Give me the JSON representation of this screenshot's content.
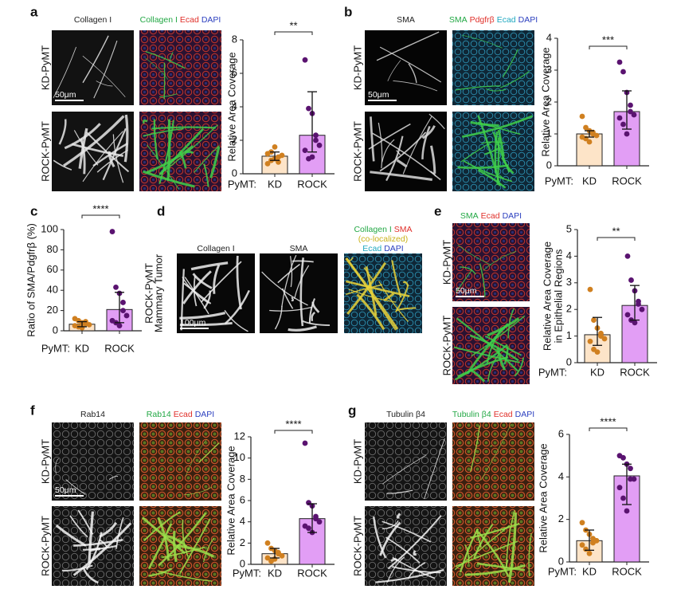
{
  "panels": [
    {
      "letter": "a",
      "titles": [
        [
          [
            {
              "text": "Collagen I",
              "color": "#222222"
            }
          ]
        ],
        [
          [
            {
              "text": "Collagen I",
              "color": "#23a845"
            },
            {
              "text": "Ecad",
              "color": "#e0302a"
            },
            {
              "text": "DAPI",
              "color": "#2b3fbf"
            }
          ]
        ]
      ],
      "rows": [
        [
          "KD-PyMT"
        ],
        [
          "ROCK-PyMT"
        ]
      ],
      "scale_bar": "50μm"
    },
    {
      "letter": "b",
      "titles": [
        [
          [
            {
              "text": "SMA",
              "color": "#222222"
            }
          ]
        ],
        [
          [
            {
              "text": "SMA",
              "color": "#23a845"
            },
            {
              "text": "Pdgfrβ",
              "color": "#e0302a"
            },
            {
              "text": "Ecad",
              "color": "#1fa8c0"
            },
            {
              "text": "DAPI",
              "color": "#2b3fbf"
            }
          ]
        ]
      ],
      "rows": [
        [
          "KD-PyMT"
        ],
        [
          "ROCK-PyMT"
        ]
      ],
      "scale_bar": "50μm"
    },
    {
      "letter": "c",
      "titles": [],
      "rows": [],
      "scale_bar": null
    },
    {
      "letter": "d",
      "titles": [
        [
          [
            {
              "text": "Collagen I",
              "color": "#222222"
            }
          ]
        ],
        [
          [
            {
              "text": "SMA",
              "color": "#222222"
            }
          ]
        ],
        [
          [
            {
              "text": "Collagen I",
              "color": "#23a845"
            },
            {
              "text": "SMA",
              "color": "#e0302a"
            }
          ],
          [
            {
              "text": "(co-localized)",
              "color": "#c9b21a"
            }
          ],
          [
            {
              "text": "Ecad",
              "color": "#1fa8c0"
            },
            {
              "text": "DAPI",
              "color": "#2b3fbf"
            }
          ]
        ]
      ],
      "rows": [
        [
          "ROCK-PyMT",
          "Mammary Tumor"
        ]
      ],
      "scale_bar": "100μm"
    },
    {
      "letter": "e",
      "titles": [
        [
          [
            {
              "text": "SMA",
              "color": "#23a845"
            },
            {
              "text": "Ecad",
              "color": "#e0302a"
            },
            {
              "text": "DAPI",
              "color": "#2b3fbf"
            }
          ]
        ]
      ],
      "rows": [
        [
          "KD-PyMT"
        ],
        [
          "ROCK-PyMT"
        ]
      ],
      "scale_bar": "50μm"
    },
    {
      "letter": "f",
      "titles": [
        [
          [
            {
              "text": "Rab14",
              "color": "#222222"
            }
          ]
        ],
        [
          [
            {
              "text": "Rab14",
              "color": "#23a845"
            },
            {
              "text": "Ecad",
              "color": "#e0302a"
            },
            {
              "text": "DAPI",
              "color": "#2b3fbf"
            }
          ]
        ]
      ],
      "rows": [
        [
          "KD-PyMT"
        ],
        [
          "ROCK-PyMT"
        ]
      ],
      "scale_bar": "50μm"
    },
    {
      "letter": "g",
      "titles": [
        [
          [
            {
              "text": "Tubulin β4",
              "color": "#222222"
            }
          ]
        ],
        [
          [
            {
              "text": "Tubulin β4",
              "color": "#23a845"
            },
            {
              "text": "Ecad",
              "color": "#e0302a"
            },
            {
              "text": "DAPI",
              "color": "#2b3fbf"
            }
          ]
        ]
      ],
      "rows": [
        [
          "KD-PyMT"
        ],
        [
          "ROCK-PyMT"
        ]
      ],
      "scale_bar": null
    }
  ],
  "chart_data": [
    {
      "type": "bar",
      "panel": "a",
      "y_label": [
        "Relative Area Coverage"
      ],
      "x_prefix": "PyMT:",
      "categories": [
        "KD",
        "ROCK"
      ],
      "values": [
        1.05,
        2.3
      ],
      "ci_low": [
        0.8,
        1.3
      ],
      "ci_high": [
        1.3,
        4.9
      ],
      "points": [
        [
          0.6,
          0.8,
          0.9,
          1.0,
          1.1,
          1.2,
          1.3,
          1.6,
          0.7
        ],
        [
          6.8,
          3.9,
          3.6,
          2.3,
          1.7,
          1.4,
          0.9,
          1.0,
          2.0
        ]
      ],
      "colors": [
        "#fde4c8",
        "#e29ef5"
      ],
      "point_colors": [
        "#d08020",
        "#5a1370"
      ],
      "ylim": [
        0,
        8
      ],
      "yticks": [
        0,
        2,
        4,
        6,
        8
      ],
      "significance": "**"
    },
    {
      "type": "bar",
      "panel": "b",
      "y_label": [
        "Relative Area Coverage"
      ],
      "x_prefix": "PyMT:",
      "categories": [
        "KD",
        "ROCK"
      ],
      "values": [
        1.0,
        1.7
      ],
      "ci_low": [
        0.9,
        1.15
      ],
      "ci_high": [
        1.1,
        2.35
      ],
      "points": [
        [
          1.55,
          1.2,
          1.1,
          1.0,
          0.95,
          0.9,
          0.85,
          0.75,
          1.05
        ],
        [
          3.25,
          2.95,
          2.3,
          1.9,
          1.6,
          1.5,
          1.3,
          1.0,
          1.7
        ]
      ],
      "colors": [
        "#fde4c8",
        "#e29ef5"
      ],
      "point_colors": [
        "#d08020",
        "#5a1370"
      ],
      "ylim": [
        0,
        4
      ],
      "yticks": [
        0,
        1,
        2,
        3,
        4
      ],
      "significance": "***"
    },
    {
      "type": "bar",
      "panel": "c",
      "y_label": [
        "Ratio of SMA/Pdgfrβ (%)"
      ],
      "x_prefix": "PyMT:",
      "categories": [
        "KD",
        "ROCK"
      ],
      "values": [
        6.5,
        21
      ],
      "ci_low": [
        4,
        8
      ],
      "ci_high": [
        9,
        38
      ],
      "points": [
        [
          12,
          10,
          8,
          7,
          6,
          5,
          4,
          3,
          9
        ],
        [
          98,
          43,
          37,
          28,
          15,
          10,
          8,
          5,
          20
        ]
      ],
      "colors": [
        "#fde4c8",
        "#e29ef5"
      ],
      "point_colors": [
        "#d08020",
        "#5a1370"
      ],
      "ylim": [
        0,
        100
      ],
      "yticks": [
        0,
        20,
        40,
        60,
        80,
        100
      ],
      "significance": "****"
    },
    {
      "type": "bar",
      "panel": "e",
      "y_label": [
        "Relative Area Coverage",
        "in Epithelial Regions"
      ],
      "x_prefix": "PyMT:",
      "categories": [
        "KD",
        "ROCK"
      ],
      "values": [
        1.05,
        2.15
      ],
      "ci_low": [
        0.65,
        1.6
      ],
      "ci_high": [
        1.7,
        2.9
      ],
      "points": [
        [
          2.75,
          1.6,
          1.3,
          1.1,
          0.9,
          0.8,
          0.5,
          0.4,
          1.0
        ],
        [
          4.0,
          3.1,
          2.7,
          2.2,
          2.0,
          1.8,
          1.6,
          1.5,
          2.3
        ]
      ],
      "colors": [
        "#fde4c8",
        "#e29ef5"
      ],
      "point_colors": [
        "#d08020",
        "#5a1370"
      ],
      "ylim": [
        0,
        5
      ],
      "yticks": [
        0,
        1,
        2,
        3,
        4,
        5
      ],
      "significance": "**"
    },
    {
      "type": "bar",
      "panel": "f",
      "y_label": [
        "Relative Area Coverage"
      ],
      "x_prefix": "PyMT:",
      "categories": [
        "KD",
        "ROCK"
      ],
      "values": [
        1.0,
        4.3
      ],
      "ci_low": [
        0.6,
        3.0
      ],
      "ci_high": [
        1.5,
        5.7
      ],
      "points": [
        [
          2.0,
          1.5,
          1.3,
          1.0,
          0.8,
          0.6,
          0.3,
          0.5,
          1.1
        ],
        [
          11.4,
          5.8,
          5.5,
          4.5,
          4.0,
          3.6,
          3.4,
          3.0,
          4.3
        ]
      ],
      "colors": [
        "#fde4c8",
        "#e29ef5"
      ],
      "point_colors": [
        "#d08020",
        "#5a1370"
      ],
      "ylim": [
        0,
        12
      ],
      "yticks": [
        0,
        2,
        4,
        6,
        8,
        10,
        12
      ],
      "significance": "****"
    },
    {
      "type": "bar",
      "panel": "g",
      "y_label": [
        "Relative Area Coverage"
      ],
      "x_prefix": "PyMT:",
      "categories": [
        "KD",
        "ROCK"
      ],
      "values": [
        1.0,
        4.05
      ],
      "ci_low": [
        0.55,
        2.7
      ],
      "ci_high": [
        1.5,
        4.6
      ],
      "points": [
        [
          1.85,
          1.5,
          1.3,
          1.1,
          1.0,
          0.8,
          0.6,
          0.4,
          0.9
        ],
        [
          5.0,
          4.9,
          4.6,
          4.4,
          3.9,
          3.5,
          3.0,
          2.4,
          3.9
        ]
      ],
      "colors": [
        "#fde4c8",
        "#e29ef5"
      ],
      "point_colors": [
        "#d08020",
        "#5a1370"
      ],
      "ylim": [
        0,
        6
      ],
      "yticks": [
        0,
        2,
        4,
        6
      ],
      "significance": "****"
    }
  ]
}
